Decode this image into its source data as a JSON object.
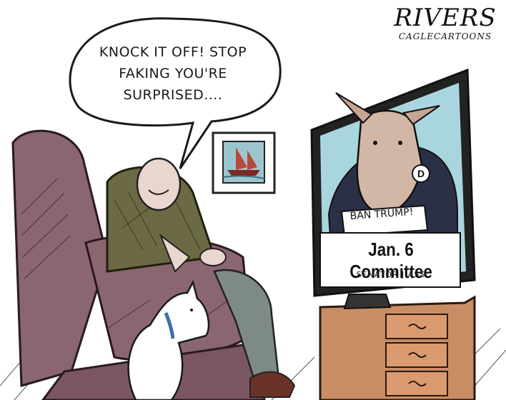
{
  "speech_bubble": {
    "lines": [
      "KNOCK IT OFF! STOP",
      "FAKING YOU'RE",
      "SURPRISED...."
    ]
  },
  "signature": {
    "name": "RIVERS",
    "credit": "CAGLECARTOONS"
  },
  "tv": {
    "sign_text": "BAN TRUMP!",
    "badge": "D",
    "chyron_title": "Jan. 6 Committee",
    "chyron_subtitle": "SENATOR J.ASS"
  },
  "colors": {
    "tv_screen": "#a9d6de",
    "chair": "#8a6670",
    "cabinet": "#c98d66",
    "jacket": "#6b6a45",
    "trousers": "#7d8a86",
    "dog_collar": "#3f6fa8",
    "suit": "#2b3047"
  }
}
